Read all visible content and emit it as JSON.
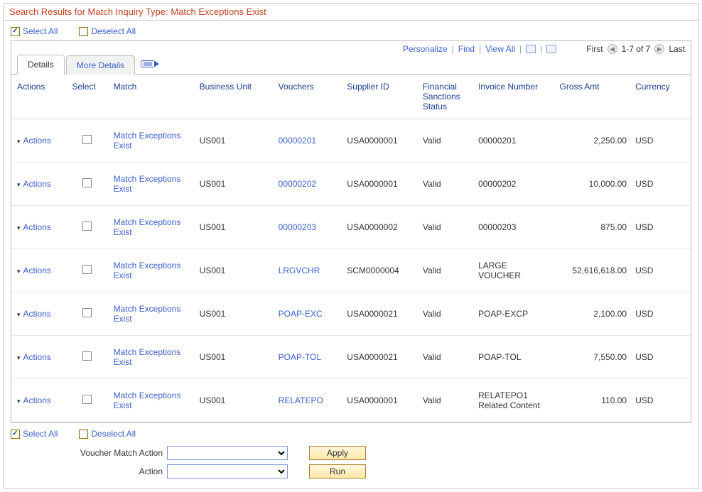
{
  "header": {
    "title": "Search Results for Match Inquiry Type: Match Exceptions Exist"
  },
  "selectControls": {
    "selectAll": "Select All",
    "deselectAll": "Deselect All"
  },
  "gridToolbar": {
    "personalize": "Personalize",
    "find": "Find",
    "viewAll": "View All",
    "first": "First",
    "range": "1-7 of 7",
    "last": "Last"
  },
  "tabs": {
    "details": "Details",
    "moreDetails": "More Details"
  },
  "columns": {
    "actions": "Actions",
    "select": "Select",
    "match": "Match",
    "businessUnit": "Business Unit",
    "vouchers": "Vouchers",
    "supplierId": "Supplier ID",
    "financialSanctions": "Financial Sanctions Status",
    "invoiceNumber": "Invoice Number",
    "grossAmt": "Gross Amt",
    "currency": "Currency"
  },
  "rowLabels": {
    "actions": "Actions",
    "match": "Match Exceptions Exist"
  },
  "rows": [
    {
      "bu": "US001",
      "voucher": "00000201",
      "supplier": "USA0000001",
      "fin": "Valid",
      "invoice": "00000201",
      "amt": "2,250.00",
      "cur": "USD"
    },
    {
      "bu": "US001",
      "voucher": "00000202",
      "supplier": "USA0000001",
      "fin": "Valid",
      "invoice": "00000202",
      "amt": "10,000.00",
      "cur": "USD"
    },
    {
      "bu": "US001",
      "voucher": "00000203",
      "supplier": "USA0000002",
      "fin": "Valid",
      "invoice": "00000203",
      "amt": "875.00",
      "cur": "USD"
    },
    {
      "bu": "US001",
      "voucher": "LRGVCHR",
      "supplier": "SCM0000004",
      "fin": "Valid",
      "invoice": "LARGE VOUCHER",
      "amt": "52,616,618.00",
      "cur": "USD"
    },
    {
      "bu": "US001",
      "voucher": "POAP-EXC",
      "supplier": "USA0000021",
      "fin": "Valid",
      "invoice": "POAP-EXCP",
      "amt": "2,100.00",
      "cur": "USD"
    },
    {
      "bu": "US001",
      "voucher": "POAP-TOL",
      "supplier": "USA0000021",
      "fin": "Valid",
      "invoice": "POAP-TOL",
      "amt": "7,550.00",
      "cur": "USD"
    },
    {
      "bu": "US001",
      "voucher": "RELATEPO",
      "supplier": "USA0000001",
      "fin": "Valid",
      "invoice": "RELATEPO1 Related Content",
      "amt": "110.00",
      "cur": "USD"
    }
  ],
  "bottomForm": {
    "voucherMatchAction": "Voucher Match Action",
    "action": "Action",
    "apply": "Apply",
    "run": "Run"
  },
  "colors": {
    "headerText": "#c04020",
    "link": "#3a5fcd",
    "thText": "#1a3e8e"
  }
}
